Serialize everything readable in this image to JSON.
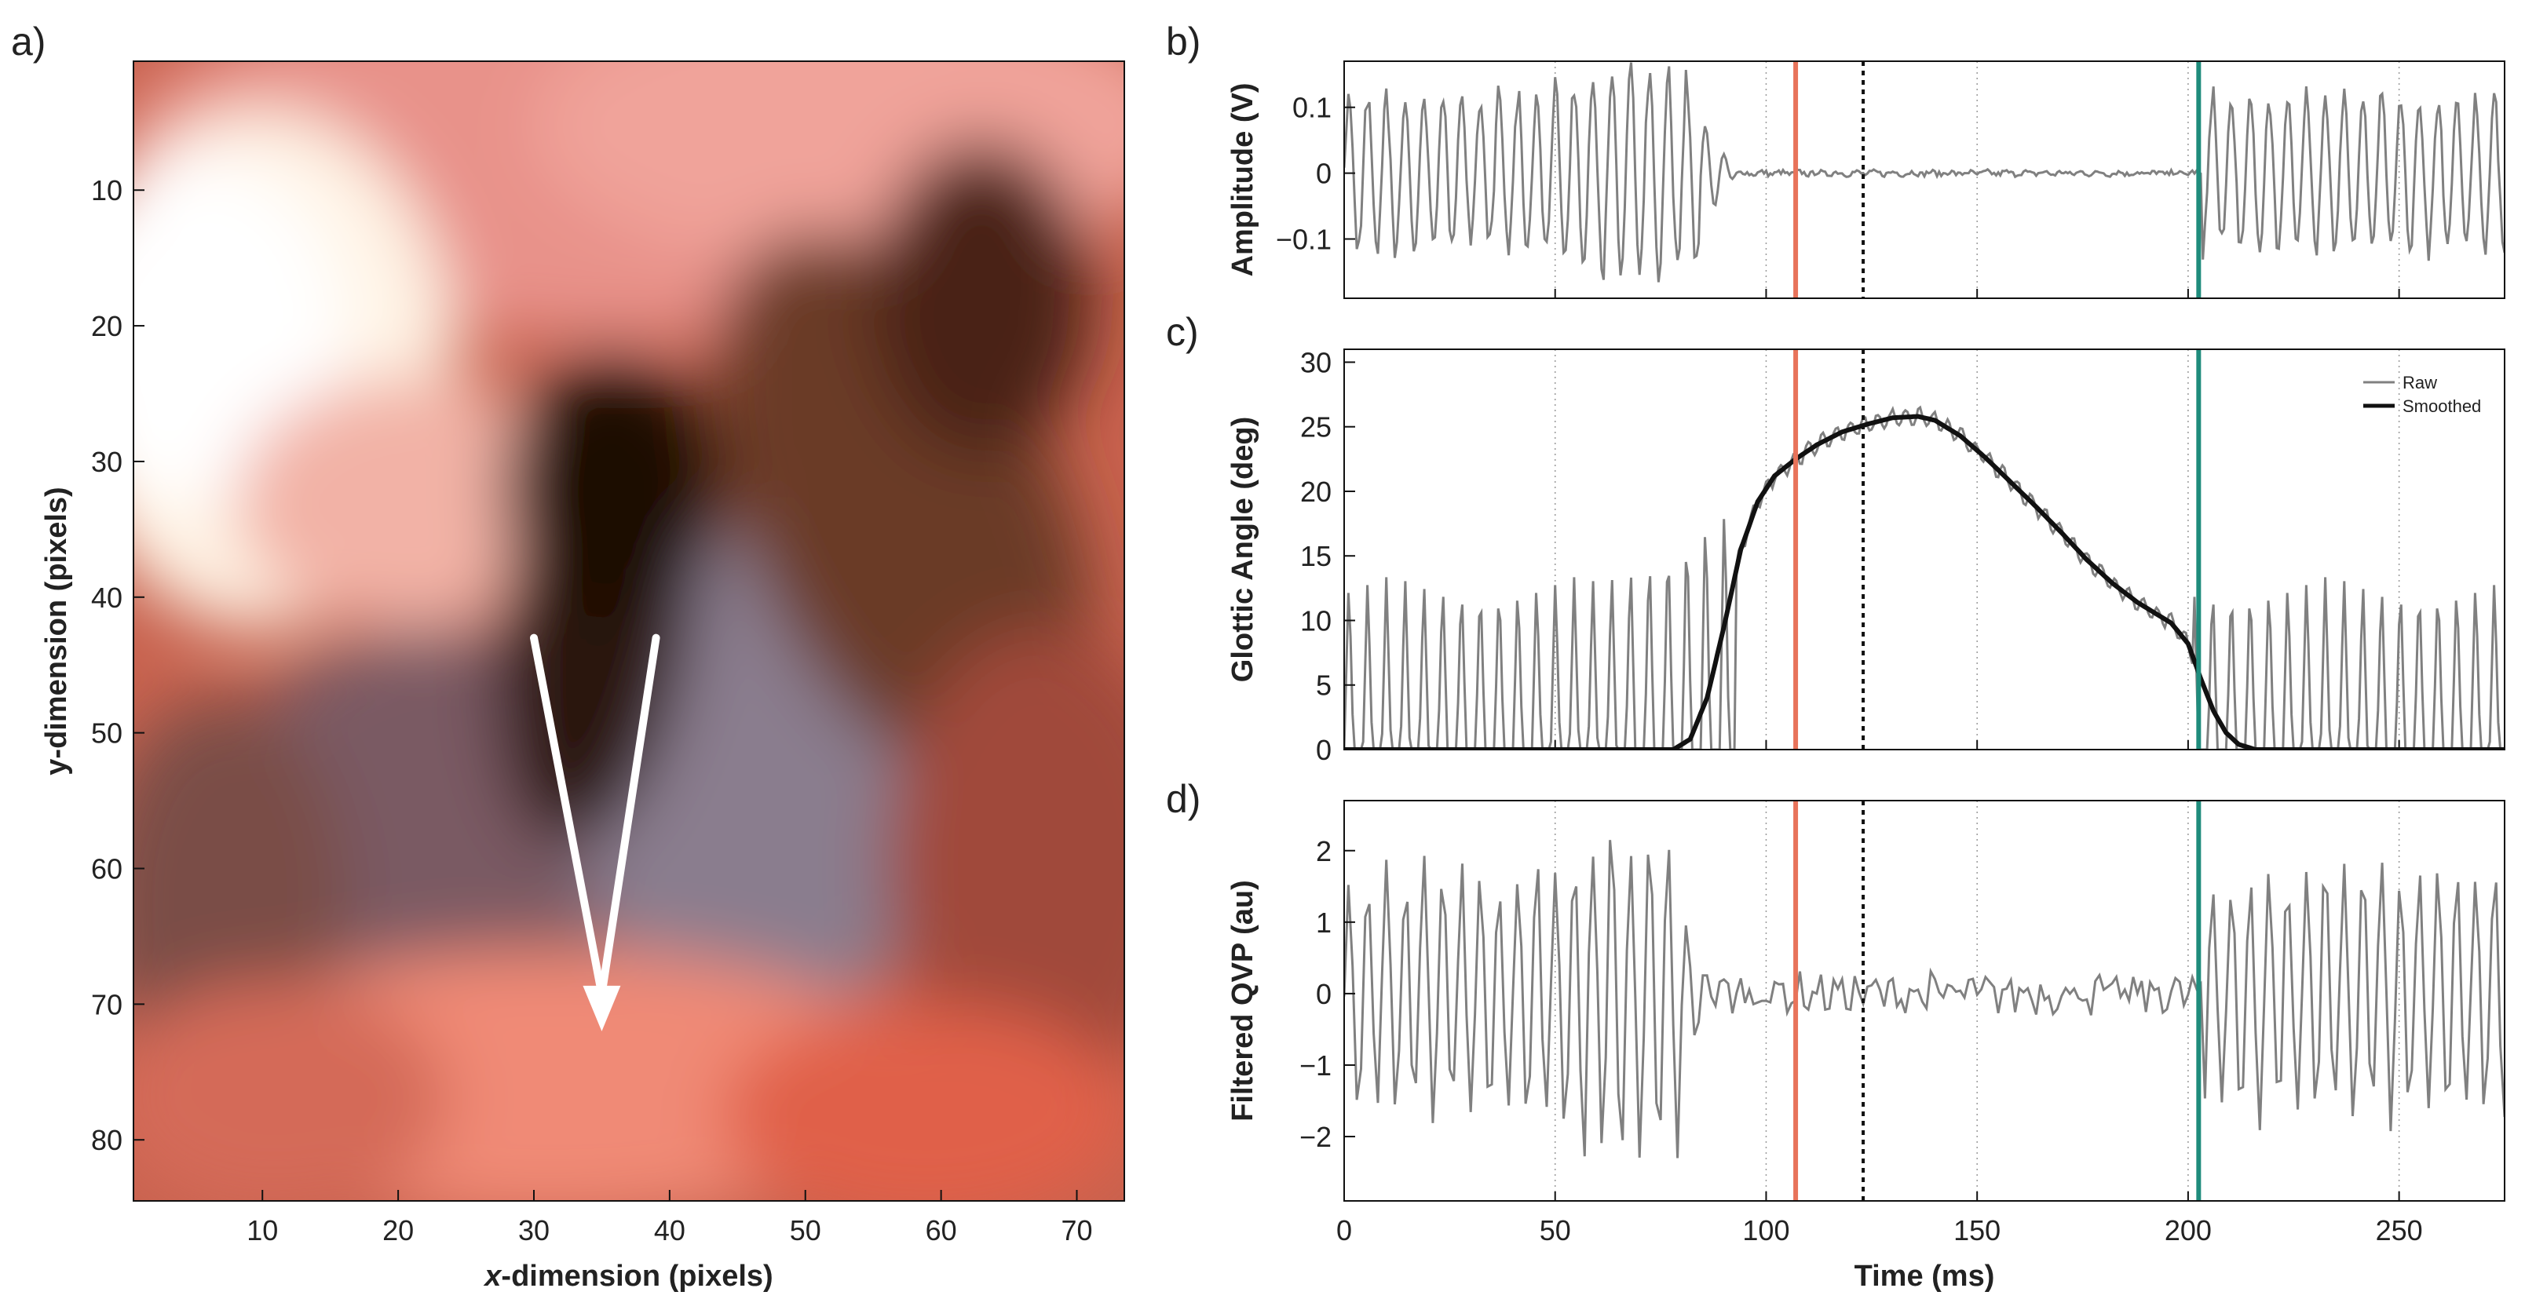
{
  "colors": {
    "onset_line": "#e8735a",
    "offset_line": "#1f8c7c",
    "midpoint_line": "#111111",
    "raw_trace": "#808080",
    "smoothed_trace": "#111111",
    "arrow": "#ffffff",
    "gridline": "#9a9a9a"
  },
  "chart_data": [
    {
      "id": "a",
      "panel_label": "a)",
      "type": "heatmap",
      "xlabel_prefix": "x",
      "xlabel_rest": "-dimension (pixels)",
      "ylabel": "y-dimension (pixels)",
      "xlim": [
        0.5,
        73.5
      ],
      "ylim": [
        0.5,
        84.5
      ],
      "y_inverted": true,
      "x_ticks": [
        10,
        20,
        30,
        40,
        50,
        60,
        70
      ],
      "y_ticks": [
        10,
        20,
        30,
        40,
        50,
        60,
        70,
        80
      ],
      "arrow": {
        "left_branch": [
          [
            30,
            43
          ],
          [
            35,
            71
          ]
        ],
        "right_branch": [
          [
            39,
            43
          ],
          [
            35,
            71
          ]
        ],
        "arrowhead_tip": [
          35,
          72
        ]
      }
    },
    {
      "id": "b",
      "panel_label": "b)",
      "type": "line",
      "ylabel": "Amplitude (V)",
      "xlim": [
        0,
        275
      ],
      "ylim": [
        -0.19,
        0.17
      ],
      "y_ticks": [
        0.1,
        0,
        -0.1
      ],
      "y_tick_labels": [
        "0.1",
        "0",
        "−0.1"
      ],
      "signal": {
        "cycle_ms": 4.45,
        "amplitude": 0.13,
        "onset_ms": 93,
        "offset_ms": 201,
        "residual": 0.004,
        "samples_per_ms": 2
      }
    },
    {
      "id": "c",
      "panel_label": "c)",
      "type": "line",
      "ylabel": "Glottic Angle (deg)",
      "xlim": [
        0,
        275
      ],
      "ylim": [
        0,
        31
      ],
      "y_ticks": [
        0,
        5,
        10,
        15,
        20,
        25,
        30
      ],
      "legend": {
        "position": "top-right",
        "entries": [
          "Raw",
          "Smoothed"
        ]
      },
      "smoothed_curve": {
        "x": [
          0,
          78,
          82,
          86,
          90,
          94,
          98,
          102,
          107,
          112,
          118,
          124,
          130,
          136,
          140,
          146,
          152,
          158,
          164,
          170,
          176,
          182,
          188,
          192,
          196,
          200,
          203,
          206,
          209,
          212,
          216,
          275
        ],
        "y": [
          0,
          0,
          0.8,
          4,
          9.5,
          15.5,
          19.2,
          21.2,
          22.5,
          23.6,
          24.6,
          25.2,
          25.7,
          25.8,
          25.5,
          24.3,
          22.6,
          20.7,
          18.8,
          16.8,
          14.7,
          12.9,
          11.4,
          10.6,
          9.8,
          8.2,
          5.5,
          3,
          1.3,
          0.4,
          0,
          0
        ]
      },
      "raw_peak": {
        "cycle_ms": 4.45,
        "peak_deg": 13.5,
        "onset_ms": 93,
        "offset_ms": 201,
        "growing_peaks_ms": [
          85,
          89,
          93
        ],
        "growing_peaks_deg": [
          20,
          21,
          21
        ]
      }
    },
    {
      "id": "d",
      "panel_label": "d)",
      "type": "line",
      "ylabel": "Filtered QVP (au)",
      "xlabel": "Time (ms)",
      "xlim": [
        0,
        275
      ],
      "ylim": [
        -2.9,
        2.7
      ],
      "x_ticks": [
        0,
        50,
        100,
        150,
        200,
        250
      ],
      "y_ticks": [
        2,
        1,
        0,
        -1,
        -2
      ],
      "y_tick_labels": [
        "2",
        "1",
        "0",
        "−1",
        "−2"
      ],
      "signal": {
        "cycle_ms": 4.45,
        "amplitude": 1.9,
        "onset_ms": 88,
        "offset_ms": 201,
        "residual": 0.22,
        "samples_per_ms": 1
      }
    }
  ],
  "time_markers": {
    "dotted_grid_ms": [
      50,
      100,
      150,
      200,
      250
    ],
    "onset_ms": 107,
    "midpoint_ms": 123,
    "offset_ms": 202.5
  }
}
